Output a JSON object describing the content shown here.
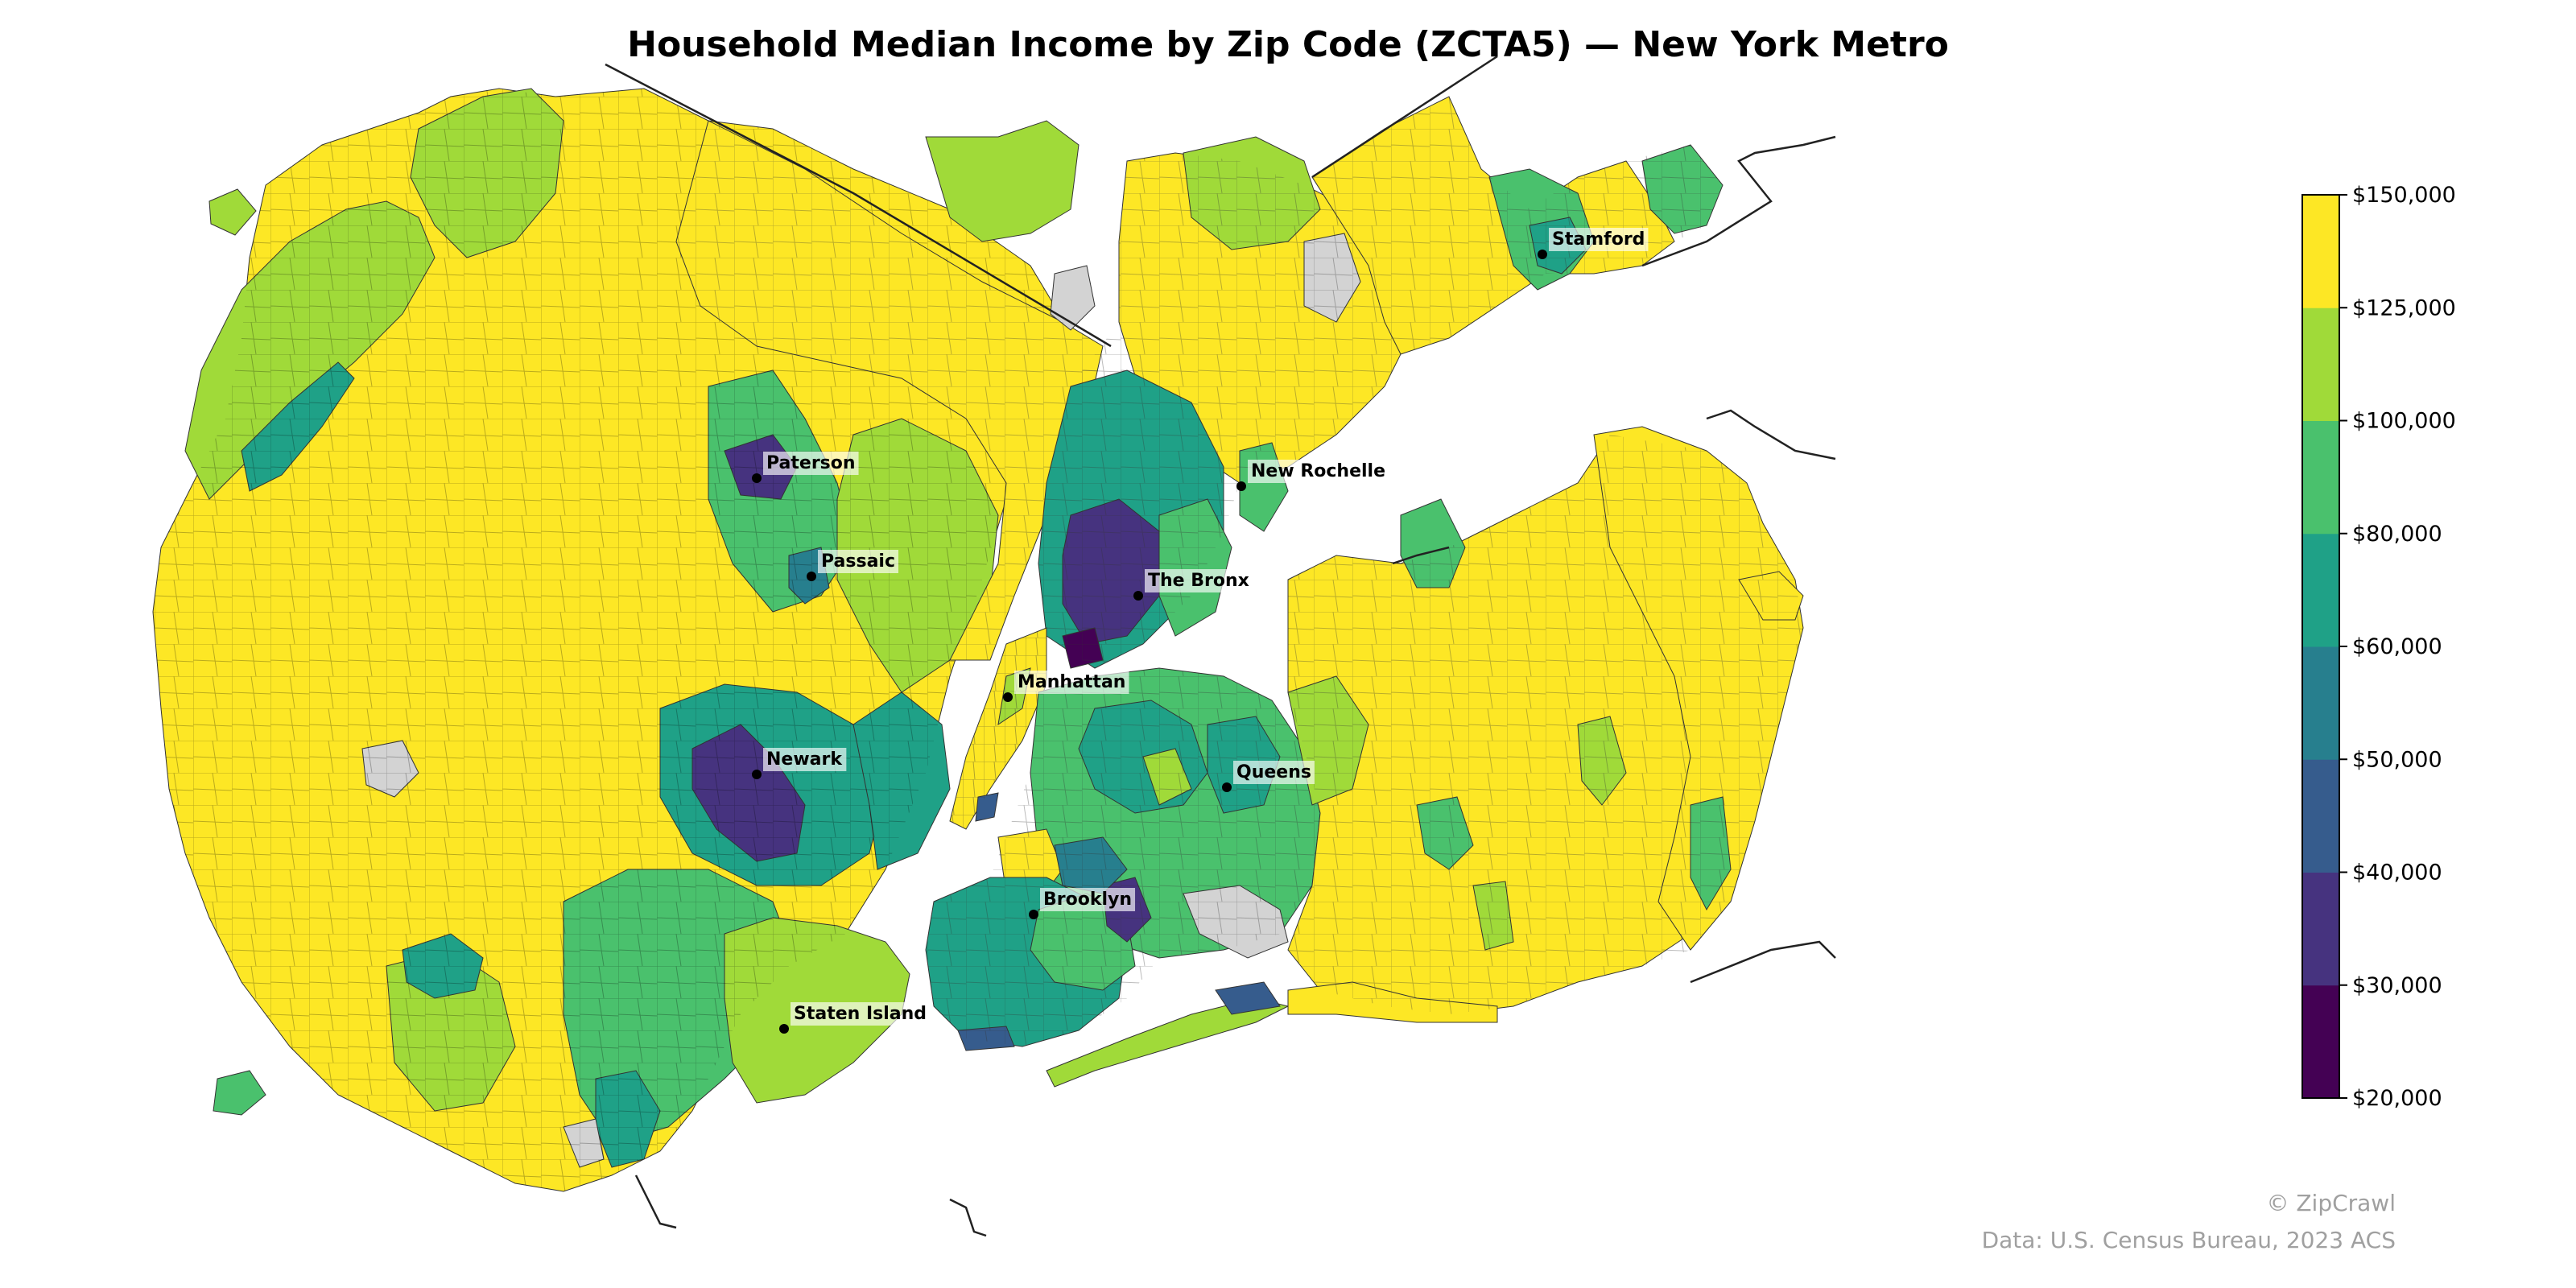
{
  "map": {
    "title": "Household Median Income by Zip Code (ZCTA5) — New York Metro",
    "credit": "© ZipCrawl",
    "source": "Data: U.S. Census Bureau, 2023 ACS",
    "no_data_color": "#d3d3d3",
    "border_color": "#222222"
  },
  "legend": {
    "ticks": [
      "$20,000",
      "$30,000",
      "$40,000",
      "$50,000",
      "$60,000",
      "$80,000",
      "$100,000",
      "$125,000",
      "$150,000"
    ],
    "bins": [
      {
        "range": [
          20000,
          30000
        ],
        "color": "#440154"
      },
      {
        "range": [
          30000,
          40000
        ],
        "color": "#46337f"
      },
      {
        "range": [
          40000,
          50000
        ],
        "color": "#365c8d"
      },
      {
        "range": [
          50000,
          60000
        ],
        "color": "#277f8e"
      },
      {
        "range": [
          60000,
          80000
        ],
        "color": "#1fa187"
      },
      {
        "range": [
          80000,
          100000
        ],
        "color": "#4ac16d"
      },
      {
        "range": [
          100000,
          125000
        ],
        "color": "#a0da39"
      },
      {
        "range": [
          125000,
          150000
        ],
        "color": "#fde725"
      }
    ]
  },
  "cities": [
    {
      "name": "Paterson"
    },
    {
      "name": "Passaic"
    },
    {
      "name": "The Bronx"
    },
    {
      "name": "New Rochelle"
    },
    {
      "name": "Stamford"
    },
    {
      "name": "Manhattan"
    },
    {
      "name": "Newark"
    },
    {
      "name": "Queens"
    },
    {
      "name": "Brooklyn"
    },
    {
      "name": "Staten Island"
    }
  ]
}
